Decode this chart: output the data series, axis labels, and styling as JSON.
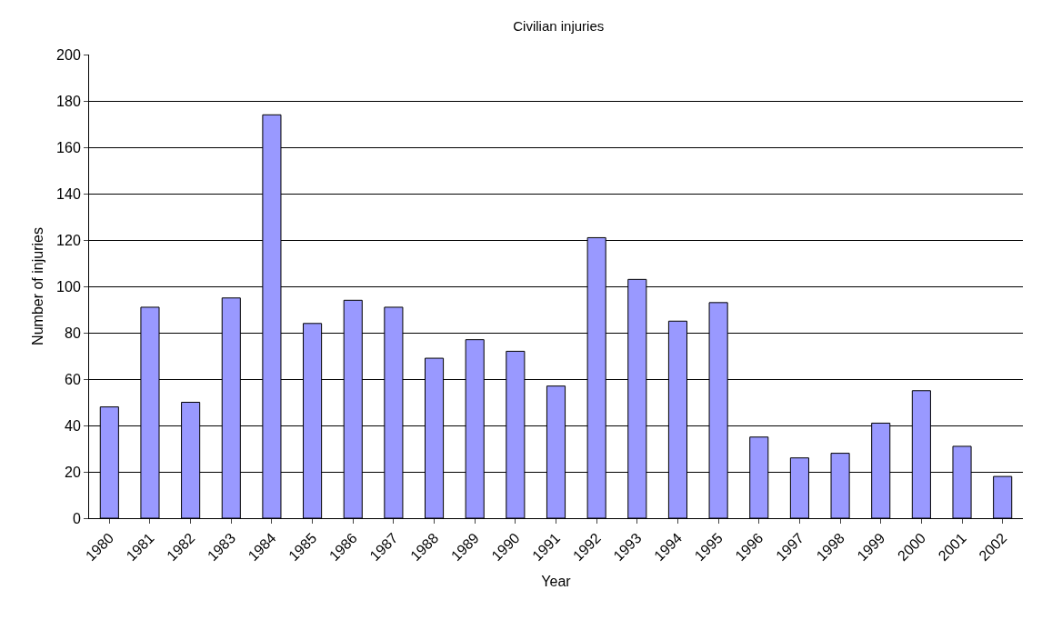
{
  "chart_data": {
    "type": "bar",
    "title": "Civilian injuries",
    "xlabel": "Year",
    "ylabel": "Number of injuries",
    "categories": [
      "1980",
      "1981",
      "1982",
      "1983",
      "1984",
      "1985",
      "1986",
      "1987",
      "1988",
      "1989",
      "1990",
      "1991",
      "1992",
      "1993",
      "1994",
      "1995",
      "1996",
      "1997",
      "1998",
      "1999",
      "2000",
      "2001",
      "2002"
    ],
    "values": [
      48,
      91,
      50,
      95,
      174,
      84,
      94,
      91,
      69,
      77,
      72,
      57,
      121,
      103,
      85,
      93,
      35,
      26,
      28,
      41,
      55,
      31,
      18
    ],
    "color": "#9999ff",
    "ylim": [
      0,
      200
    ],
    "yticks": [
      0,
      20,
      40,
      60,
      80,
      100,
      120,
      140,
      160,
      180,
      200
    ],
    "grid": "y"
  }
}
